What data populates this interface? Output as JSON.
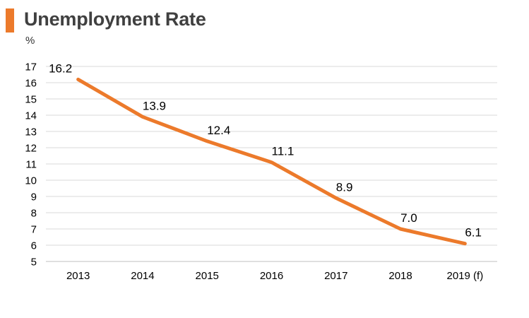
{
  "colors": {
    "accent": "#ec7a2b",
    "line": "#ec7a2b",
    "grid": "#d9d9d9",
    "text": "#000000"
  },
  "chart_data": {
    "type": "line",
    "title": "Unemployment Rate",
    "ylabel": "%",
    "xlabel": "",
    "categories": [
      "2013",
      "2014",
      "2015",
      "2016",
      "2017",
      "2018",
      "2019 (f)"
    ],
    "series": [
      {
        "values": [
          16.2,
          13.9,
          12.4,
          11.1,
          8.9,
          7.0,
          6.1
        ],
        "labels": [
          "16.2",
          "13.9",
          "12.4",
          "11.1",
          "8.9",
          "7.0",
          "6.1"
        ]
      }
    ],
    "ylim": [
      5,
      17
    ],
    "yticks": [
      "5",
      "6",
      "7",
      "8",
      "9",
      "10",
      "11",
      "12",
      "13",
      "14",
      "15",
      "16",
      "17"
    ],
    "grid": true,
    "legend": "none"
  }
}
